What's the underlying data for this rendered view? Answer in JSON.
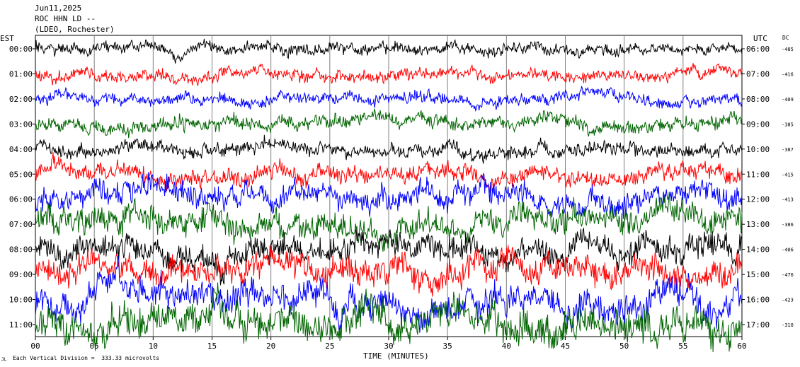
{
  "header": {
    "date": "Jun11,2025",
    "station": "ROC HHN LD --",
    "network": "(LDEO, Rochester)"
  },
  "left_axis_label": "EST",
  "right_axis_label": "UTC",
  "dc_label": "DC",
  "footer": {
    "x_axis_title": "TIME (MINUTES)",
    "scale_note": "Each Vertical Division =  333.33 microvolts",
    "corner_mark": "JL"
  },
  "chart_data": {
    "type": "line",
    "title": "ROC HHN LD --",
    "xlabel": "TIME (MINUTES)",
    "xlim": [
      0,
      60
    ],
    "x_ticks": [
      "00",
      "05",
      "10",
      "15",
      "20",
      "25",
      "30",
      "35",
      "40",
      "45",
      "50",
      "55",
      "60"
    ],
    "grid": true,
    "series": [
      {
        "est": "00:00",
        "utc": "06:00",
        "dc": "-485",
        "color": "#000000",
        "amplitude": 0.22
      },
      {
        "est": "01:00",
        "utc": "07:00",
        "dc": "-416",
        "color": "#ff0000",
        "amplitude": 0.22
      },
      {
        "est": "02:00",
        "utc": "08:00",
        "dc": "-409",
        "color": "#0000ff",
        "amplitude": 0.22
      },
      {
        "est": "03:00",
        "utc": "09:00",
        "dc": "-385",
        "color": "#006400",
        "amplitude": 0.26
      },
      {
        "est": "04:00",
        "utc": "10:00",
        "dc": "-387",
        "color": "#000000",
        "amplitude": 0.26
      },
      {
        "est": "05:00",
        "utc": "11:00",
        "dc": "-415",
        "color": "#ff0000",
        "amplitude": 0.32
      },
      {
        "est": "06:00",
        "utc": "12:00",
        "dc": "-413",
        "color": "#0000ff",
        "amplitude": 0.45
      },
      {
        "est": "07:00",
        "utc": "13:00",
        "dc": "-386",
        "color": "#006400",
        "amplitude": 0.5
      },
      {
        "est": "08:00",
        "utc": "14:00",
        "dc": "-406",
        "color": "#000000",
        "amplitude": 0.48
      },
      {
        "est": "09:00",
        "utc": "15:00",
        "dc": "-476",
        "color": "#ff0000",
        "amplitude": 0.5
      },
      {
        "est": "10:00",
        "utc": "16:00",
        "dc": "-423",
        "color": "#0000ff",
        "amplitude": 0.55
      },
      {
        "est": "11:00",
        "utc": "17:00",
        "dc": "-310",
        "color": "#006400",
        "amplitude": 0.6
      }
    ]
  }
}
